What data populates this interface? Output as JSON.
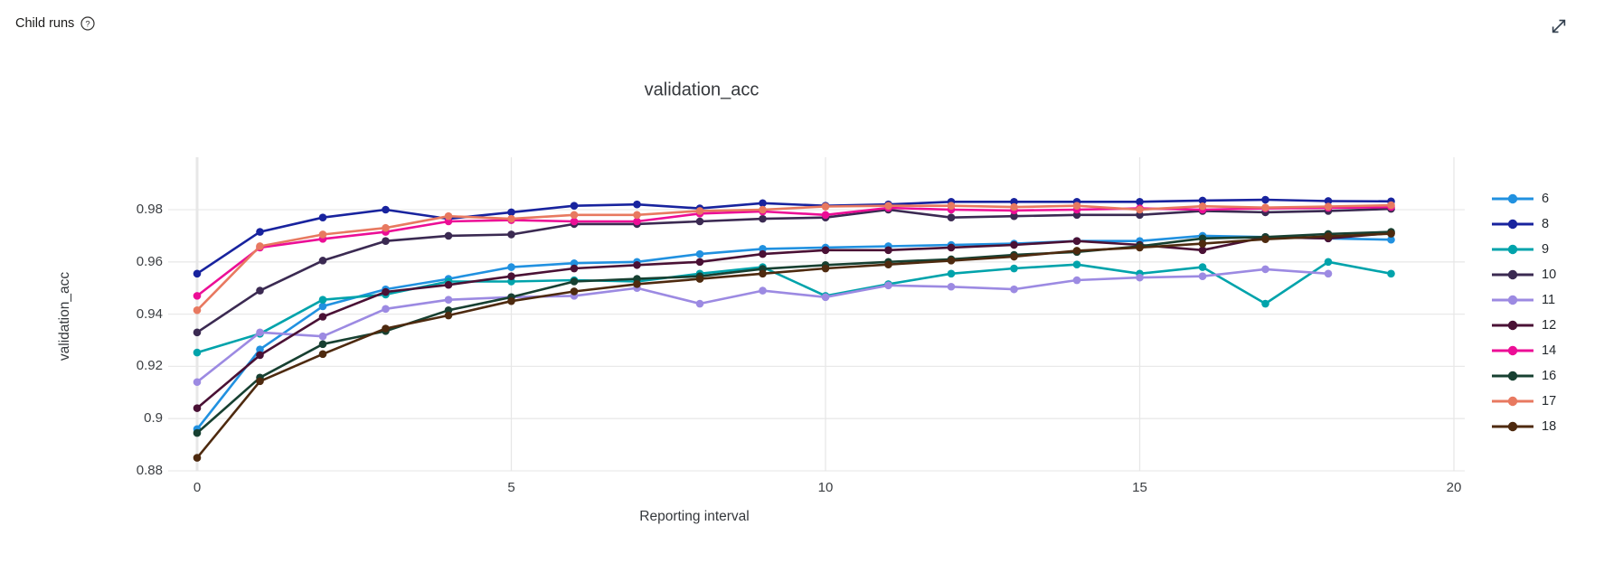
{
  "header": {
    "title": "Child runs",
    "help_icon": "question-mark-circle",
    "expand_icon": "expand-diagonal-arrow"
  },
  "chart_data": {
    "type": "line",
    "title": "validation_acc",
    "xlabel": "Reporting interval",
    "ylabel": "validation_acc",
    "grid": true,
    "legend_position": "right",
    "xlim": [
      -0.45,
      20.15
    ],
    "ylim": [
      0.88,
      1.0
    ],
    "x": [
      0,
      1,
      2,
      3,
      4,
      5,
      6,
      7,
      8,
      9,
      10,
      11,
      12,
      13,
      14,
      15,
      16,
      17,
      18,
      19
    ],
    "xticks": [
      {
        "value": 0,
        "label": "0"
      },
      {
        "value": 5,
        "label": "5"
      },
      {
        "value": 10,
        "label": "10"
      },
      {
        "value": 15,
        "label": "15"
      },
      {
        "value": 20,
        "label": "20"
      }
    ],
    "yticks": [
      {
        "value": 0.88,
        "label": "0.88"
      },
      {
        "value": 0.9,
        "label": "0.9"
      },
      {
        "value": 0.92,
        "label": "0.92"
      },
      {
        "value": 0.94,
        "label": "0.94"
      },
      {
        "value": 0.96,
        "label": "0.96"
      },
      {
        "value": 0.98,
        "label": "0.98"
      }
    ],
    "series": [
      {
        "name": "6",
        "color": "#2191e0",
        "values": [
          0.896,
          0.9265,
          0.943,
          0.9495,
          0.9535,
          0.958,
          0.9595,
          0.96,
          0.963,
          0.965,
          0.9655,
          0.966,
          0.9665,
          0.967,
          0.968,
          0.968,
          0.97,
          0.9695,
          0.969,
          0.9685
        ]
      },
      {
        "name": "8",
        "color": "#18239e",
        "values": [
          0.9555,
          0.9715,
          0.977,
          0.98,
          0.9765,
          0.979,
          0.9815,
          0.982,
          0.9805,
          0.9825,
          0.9815,
          0.982,
          0.983,
          0.983,
          0.983,
          0.983,
          0.9835,
          0.9838,
          0.9833,
          0.9832
        ]
      },
      {
        "name": "9",
        "color": "#00a3ab",
        "values": [
          0.9253,
          0.9325,
          0.9455,
          0.9475,
          0.9525,
          0.9525,
          0.953,
          0.9525,
          0.9555,
          0.958,
          0.947,
          0.9515,
          0.9555,
          0.9575,
          0.959,
          0.9555,
          0.958,
          0.944,
          0.96,
          0.9555
        ]
      },
      {
        "name": "10",
        "color": "#3b2a52",
        "values": [
          0.933,
          0.949,
          0.9605,
          0.968,
          0.97,
          0.9705,
          0.9745,
          0.9745,
          0.9755,
          0.9765,
          0.977,
          0.98,
          0.977,
          0.9775,
          0.978,
          0.978,
          0.9795,
          0.979,
          0.9795,
          0.9803
        ]
      },
      {
        "name": "11",
        "color": "#9c8ae2",
        "values": [
          0.914,
          0.933,
          0.9315,
          0.942,
          0.9455,
          0.9465,
          0.947,
          0.95,
          0.944,
          0.949,
          0.9465,
          0.951,
          0.9505,
          0.9495,
          0.953,
          0.954,
          0.9545,
          0.9572,
          0.9555
        ]
      },
      {
        "name": "12",
        "color": "#4a1135",
        "values": [
          0.904,
          0.9243,
          0.939,
          0.9485,
          0.9512,
          0.9545,
          0.9575,
          0.9588,
          0.96,
          0.963,
          0.9645,
          0.9645,
          0.9655,
          0.9665,
          0.968,
          0.9665,
          0.9645,
          0.9695,
          0.969,
          0.971
        ]
      },
      {
        "name": "14",
        "color": "#ec0e96",
        "values": [
          0.947,
          0.9655,
          0.9688,
          0.9715,
          0.9755,
          0.976,
          0.9755,
          0.9755,
          0.9785,
          0.9793,
          0.978,
          0.9807,
          0.98,
          0.9797,
          0.98,
          0.9805,
          0.98,
          0.9805,
          0.9807,
          0.981
        ]
      },
      {
        "name": "16",
        "color": "#174031",
        "values": [
          0.8945,
          0.9157,
          0.9285,
          0.9335,
          0.9415,
          0.9465,
          0.9525,
          0.9535,
          0.9545,
          0.9573,
          0.9588,
          0.96,
          0.961,
          0.9627,
          0.9638,
          0.966,
          0.969,
          0.9695,
          0.9707,
          0.9715
        ]
      },
      {
        "name": "17",
        "color": "#e87960",
        "values": [
          0.9415,
          0.966,
          0.9705,
          0.973,
          0.9775,
          0.9765,
          0.978,
          0.978,
          0.9795,
          0.98,
          0.9812,
          0.9815,
          0.9815,
          0.981,
          0.9815,
          0.98,
          0.9813,
          0.9808,
          0.9812,
          0.9817
        ]
      },
      {
        "name": "18",
        "color": "#4e2a0f",
        "values": [
          0.885,
          0.9143,
          0.9247,
          0.9345,
          0.9395,
          0.945,
          0.9487,
          0.9515,
          0.9535,
          0.9555,
          0.9575,
          0.959,
          0.9605,
          0.962,
          0.9643,
          0.9655,
          0.967,
          0.9687,
          0.9698,
          0.9708
        ]
      }
    ]
  }
}
